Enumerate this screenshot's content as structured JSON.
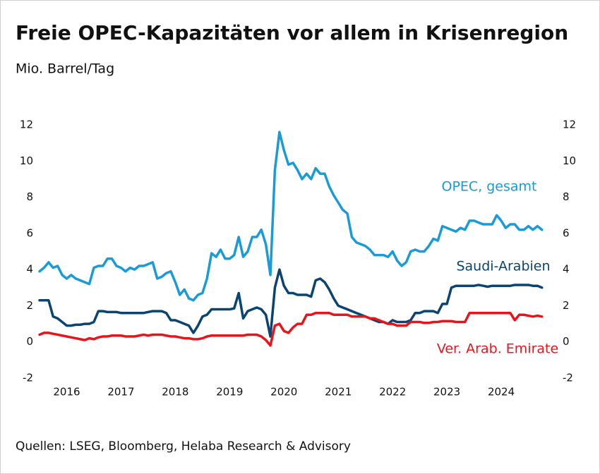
{
  "chart_data": {
    "type": "line",
    "title": "Freie OPEC-Kapazitäten vor allem in Krisenregion",
    "subtitle": "Mio. Barrel/Tag",
    "source": "Quellen: LSEG, Bloomberg, Helaba Research & Advisory",
    "x": [
      2016.0,
      2016.083,
      2016.167,
      2016.25,
      2016.333,
      2016.417,
      2016.5,
      2016.583,
      2016.667,
      2016.75,
      2016.833,
      2016.917,
      2017.0,
      2017.083,
      2017.167,
      2017.25,
      2017.333,
      2017.417,
      2017.5,
      2017.583,
      2017.667,
      2017.75,
      2017.833,
      2017.917,
      2018.0,
      2018.083,
      2018.167,
      2018.25,
      2018.333,
      2018.417,
      2018.5,
      2018.583,
      2018.667,
      2018.75,
      2018.833,
      2018.917,
      2019.0,
      2019.083,
      2019.167,
      2019.25,
      2019.333,
      2019.417,
      2019.5,
      2019.583,
      2019.667,
      2019.75,
      2019.833,
      2019.917,
      2020.0,
      2020.083,
      2020.167,
      2020.25,
      2020.333,
      2020.417,
      2020.5,
      2020.583,
      2020.667,
      2020.75,
      2020.833,
      2020.917,
      2021.0,
      2021.083,
      2021.167,
      2021.25,
      2021.333,
      2021.417,
      2021.5,
      2021.583,
      2021.667,
      2021.75,
      2021.833,
      2021.917,
      2022.0,
      2022.083,
      2022.167,
      2022.25,
      2022.333,
      2022.417,
      2022.5,
      2022.583,
      2022.667,
      2022.75,
      2022.833,
      2022.917,
      2023.0,
      2023.083,
      2023.167,
      2023.25,
      2023.333,
      2023.417,
      2023.5,
      2023.583,
      2023.667,
      2023.75,
      2023.833,
      2023.917,
      2024.0,
      2024.083,
      2024.167,
      2024.25,
      2024.333,
      2024.417,
      2024.5,
      2024.583,
      2024.667,
      2024.75,
      2024.833,
      2024.917,
      2025.0,
      2025.083,
      2025.167,
      2025.25
    ],
    "series": [
      {
        "name": "OPEC, gesamt",
        "color": "#1a9ad6",
        "values": [
          3.9,
          4.1,
          4.4,
          4.1,
          4.2,
          3.7,
          3.5,
          3.7,
          3.5,
          3.4,
          3.3,
          3.2,
          4.1,
          4.2,
          4.2,
          4.6,
          4.6,
          4.2,
          4.1,
          3.9,
          4.1,
          4.0,
          4.2,
          4.2,
          4.3,
          4.4,
          3.5,
          3.6,
          3.8,
          3.9,
          3.3,
          2.6,
          2.9,
          2.4,
          2.3,
          2.6,
          2.7,
          3.5,
          4.9,
          4.7,
          5.1,
          4.6,
          4.6,
          4.8,
          5.8,
          4.7,
          5.0,
          5.8,
          5.8,
          6.2,
          5.4,
          3.7,
          9.5,
          11.6,
          10.6,
          9.8,
          9.9,
          9.5,
          9.0,
          9.3,
          9.0,
          9.6,
          9.3,
          9.3,
          8.6,
          8.1,
          7.7,
          7.3,
          7.1,
          5.8,
          5.5,
          5.4,
          5.3,
          5.1,
          4.8,
          4.8,
          4.8,
          4.7,
          5.0,
          4.5,
          4.2,
          4.4,
          5.0,
          5.1,
          5.0,
          5.0,
          5.3,
          5.7,
          5.6,
          6.4,
          6.3,
          6.2,
          6.1,
          6.3,
          6.2,
          6.7,
          6.7,
          6.6,
          6.5,
          6.5,
          6.5,
          7.0,
          6.7,
          6.3,
          6.5,
          6.5,
          6.2,
          6.2,
          6.4,
          6.2,
          6.4,
          6.2
        ]
      },
      {
        "name": "Saudi-Arabien",
        "color": "#0b4470",
        "values": [
          2.3,
          2.3,
          2.3,
          1.4,
          1.3,
          1.1,
          0.9,
          0.9,
          0.95,
          0.95,
          1.0,
          1.0,
          1.1,
          1.7,
          1.7,
          1.65,
          1.65,
          1.65,
          1.6,
          1.6,
          1.6,
          1.6,
          1.6,
          1.6,
          1.65,
          1.7,
          1.7,
          1.7,
          1.6,
          1.2,
          1.2,
          1.1,
          1.0,
          0.9,
          0.5,
          0.9,
          1.4,
          1.5,
          1.8,
          1.8,
          1.8,
          1.8,
          1.8,
          1.85,
          2.7,
          1.3,
          1.7,
          1.8,
          1.9,
          1.8,
          1.5,
          0.3,
          3.0,
          4.0,
          3.1,
          2.7,
          2.7,
          2.6,
          2.6,
          2.6,
          2.5,
          3.4,
          3.5,
          3.3,
          2.9,
          2.4,
          2.0,
          1.9,
          1.8,
          1.7,
          1.6,
          1.5,
          1.4,
          1.3,
          1.2,
          1.1,
          1.1,
          1.0,
          1.2,
          1.1,
          1.1,
          1.1,
          1.2,
          1.6,
          1.6,
          1.7,
          1.7,
          1.7,
          1.6,
          2.1,
          2.1,
          3.0,
          3.1,
          3.1,
          3.1,
          3.1,
          3.1,
          3.15,
          3.1,
          3.05,
          3.1,
          3.1,
          3.1,
          3.1,
          3.1,
          3.15,
          3.15,
          3.15,
          3.15,
          3.1,
          3.1,
          3.0
        ]
      },
      {
        "name": "Ver. Arab. Emirate",
        "color": "#e8141b",
        "values": [
          0.4,
          0.5,
          0.5,
          0.45,
          0.4,
          0.35,
          0.3,
          0.25,
          0.2,
          0.15,
          0.1,
          0.2,
          0.15,
          0.25,
          0.3,
          0.3,
          0.35,
          0.35,
          0.35,
          0.3,
          0.3,
          0.3,
          0.35,
          0.4,
          0.35,
          0.4,
          0.4,
          0.4,
          0.35,
          0.3,
          0.3,
          0.25,
          0.2,
          0.2,
          0.15,
          0.15,
          0.2,
          0.3,
          0.35,
          0.35,
          0.35,
          0.35,
          0.35,
          0.35,
          0.35,
          0.35,
          0.4,
          0.4,
          0.4,
          0.3,
          0.1,
          -0.2,
          0.9,
          1.0,
          0.6,
          0.5,
          0.8,
          1.0,
          1.0,
          1.5,
          1.5,
          1.6,
          1.6,
          1.6,
          1.6,
          1.5,
          1.5,
          1.5,
          1.5,
          1.4,
          1.4,
          1.4,
          1.4,
          1.3,
          1.3,
          1.2,
          1.1,
          1.0,
          1.0,
          0.9,
          0.9,
          0.9,
          1.1,
          1.1,
          1.1,
          1.05,
          1.05,
          1.1,
          1.1,
          1.15,
          1.15,
          1.15,
          1.1,
          1.1,
          1.1,
          1.6,
          1.6,
          1.6,
          1.6,
          1.6,
          1.6,
          1.6,
          1.6,
          1.6,
          1.6,
          1.2,
          1.5,
          1.5,
          1.45,
          1.4,
          1.45,
          1.4
        ]
      }
    ],
    "xlim": [
      2016.0,
      2025.5
    ],
    "xticks": [
      {
        "value": 2016.5,
        "label": "2016"
      },
      {
        "value": 2017.5,
        "label": "2017"
      },
      {
        "value": 2018.5,
        "label": "2018"
      },
      {
        "value": 2019.5,
        "label": "2019"
      },
      {
        "value": 2020.5,
        "label": "2020"
      },
      {
        "value": 2021.5,
        "label": "2021"
      },
      {
        "value": 2022.5,
        "label": "2022"
      },
      {
        "value": 2023.5,
        "label": "2023"
      },
      {
        "value": 2024.5,
        "label": "2024"
      }
    ],
    "ylim": [
      -2,
      12
    ],
    "yticks": [
      -2,
      0,
      2,
      4,
      6,
      8,
      10,
      12
    ],
    "grid": false
  }
}
